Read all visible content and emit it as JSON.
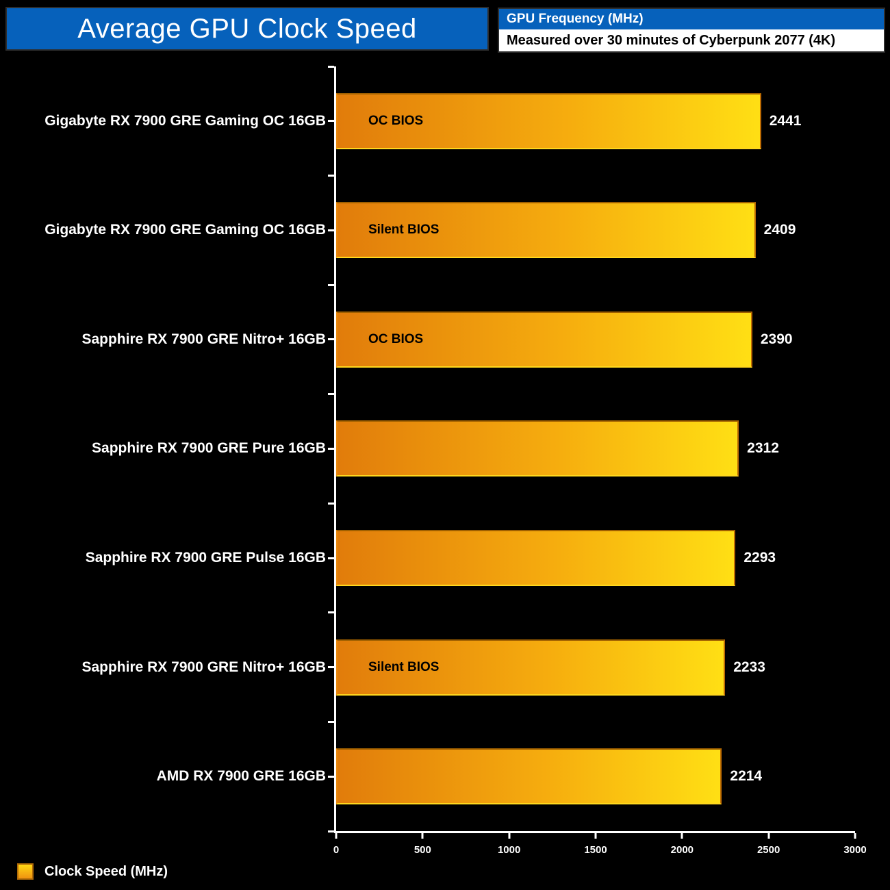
{
  "page": {
    "background": "#000000"
  },
  "title_bar": {
    "text": "Average GPU Clock Speed",
    "bg": "#0661bb"
  },
  "header": {
    "metric_label": "GPU Frequency (MHz)",
    "metric_bg": "#0661bb",
    "subtitle": "Measured over 30 minutes of Cyberpunk 2077 (4K)"
  },
  "legend": {
    "label": "Clock Speed (MHz)"
  },
  "colors": {
    "title_bg": "#0661bb",
    "bar_gradient_start": "#e17c0b",
    "bar_gradient_mid": "#f6ad0e",
    "bar_gradient_end": "#ffdf14",
    "bar_border": "#bf6c03",
    "axis": "#ffffff",
    "annotation_text": "#000000",
    "value_text": "#ffffff"
  },
  "chart_data": {
    "type": "bar",
    "orientation": "horizontal",
    "title": "Average GPU Clock Speed",
    "subtitle": "Measured over 30 minutes of Cyberpunk 2077 (4K)",
    "categories": [
      "Gigabyte RX 7900 GRE Gaming OC 16GB",
      "Gigabyte RX 7900 GRE Gaming OC 16GB",
      "Sapphire RX 7900 GRE Nitro+ 16GB",
      "Sapphire RX 7900 GRE Pure 16GB",
      "Sapphire RX 7900 GRE Pulse 16GB",
      "Sapphire RX 7900 GRE Nitro+ 16GB",
      "AMD RX 7900 GRE 16GB"
    ],
    "values": [
      2441,
      2409,
      2390,
      2312,
      2293,
      2233,
      2214
    ],
    "bar_annotations": [
      "OC BIOS",
      "Silent BIOS",
      "OC BIOS",
      "",
      "",
      "Silent BIOS",
      ""
    ],
    "series_name": "Clock Speed (MHz)",
    "xlabel": "",
    "ylabel": "",
    "xlim": [
      0,
      3000
    ],
    "xticks": [
      0,
      500,
      1000,
      1500,
      2000,
      2500,
      3000
    ],
    "grid": false,
    "legend_position": "bottom-left"
  }
}
